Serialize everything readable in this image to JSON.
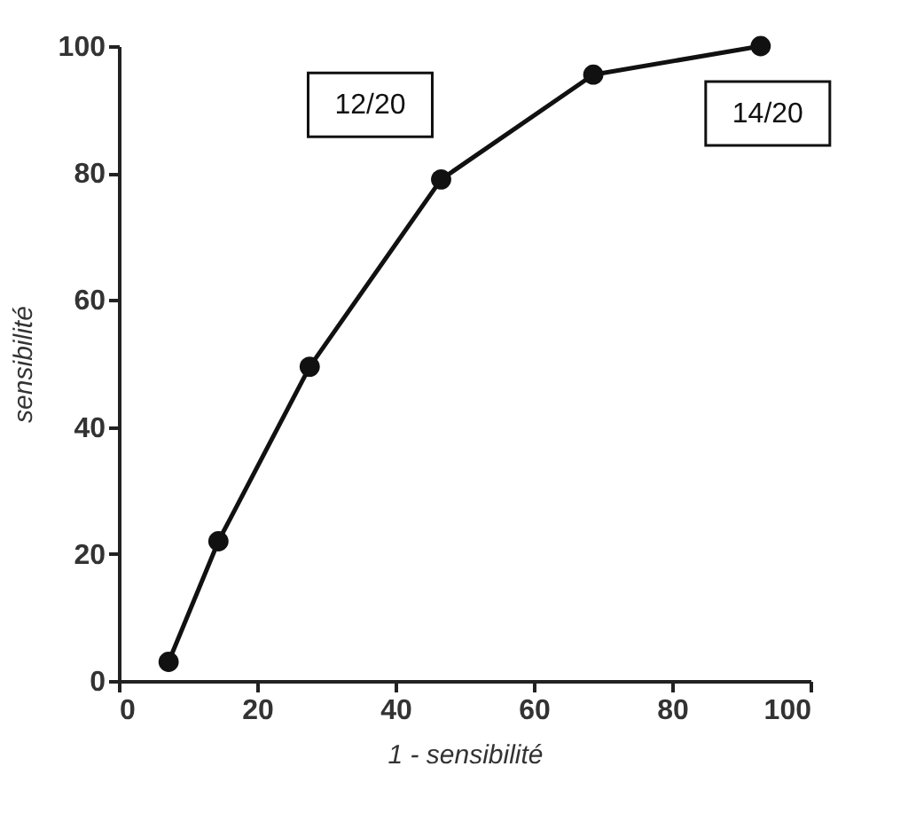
{
  "chart_data": {
    "type": "line",
    "xlabel": "1 - sensibilité",
    "ylabel": "sensibilité",
    "x": [
      7.2,
      14.4,
      27.6,
      46.6,
      68.6,
      92.8
    ],
    "series": [
      {
        "color": "#111111",
        "values": [
          3,
          22,
          49.5,
          79,
          95.5,
          100
        ]
      }
    ],
    "xlim": [
      0,
      100
    ],
    "xticks": [
      0,
      20,
      40,
      60,
      80,
      100
    ],
    "ylim": [
      0,
      100
    ],
    "yticks": [
      0,
      20,
      40,
      60,
      80,
      100
    ],
    "grid": false,
    "marker": "circle",
    "line_style": "solid",
    "annotations": [
      {
        "text": "12/20",
        "x": 46.6,
        "y": 79
      },
      {
        "text": "14/20",
        "x": 92.8,
        "y": 100
      }
    ]
  }
}
